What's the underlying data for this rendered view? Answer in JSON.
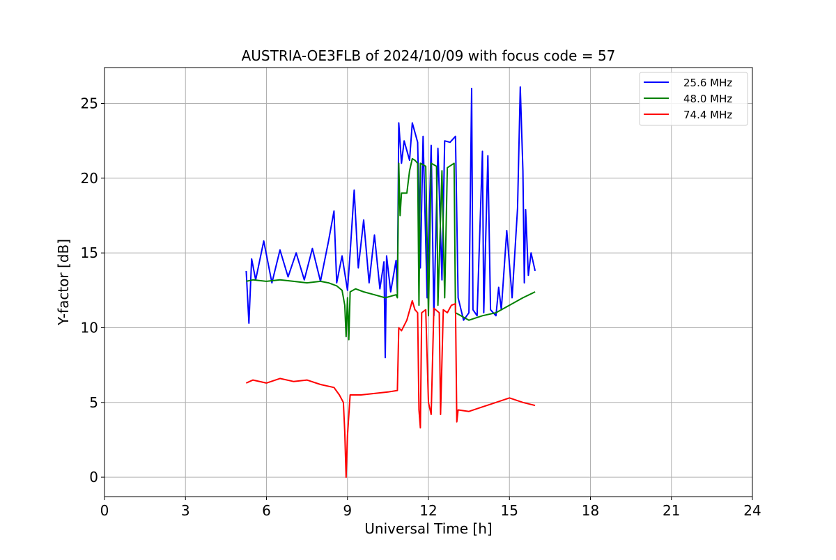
{
  "chart_data": {
    "type": "line",
    "title": "AUSTRIA-OE3FLB of 2024/10/09 with focus code = 57",
    "xlabel": "Universal Time [h]",
    "ylabel": "Y-factor [dB]",
    "xlim": [
      0,
      24
    ],
    "ylim": [
      -1.3,
      27.4
    ],
    "xticks": [
      0,
      3,
      6,
      9,
      12,
      15,
      18,
      21,
      24
    ],
    "yticks": [
      0,
      5,
      10,
      15,
      20,
      25
    ],
    "grid": true,
    "legend_position": "top-right",
    "series": [
      {
        "name": "25.6 MHz",
        "color": "#0000ff",
        "points": [
          [
            5.25,
            13.8
          ],
          [
            5.35,
            10.3
          ],
          [
            5.45,
            14.6
          ],
          [
            5.6,
            13.2
          ],
          [
            5.9,
            15.8
          ],
          [
            6.2,
            13.0
          ],
          [
            6.5,
            15.2
          ],
          [
            6.8,
            13.4
          ],
          [
            7.1,
            15.0
          ],
          [
            7.4,
            13.2
          ],
          [
            7.7,
            15.3
          ],
          [
            8.0,
            13.1
          ],
          [
            8.3,
            15.8
          ],
          [
            8.5,
            17.8
          ],
          [
            8.6,
            13.0
          ],
          [
            8.8,
            14.8
          ],
          [
            9.0,
            12.5
          ],
          [
            9.1,
            15.0
          ],
          [
            9.25,
            19.2
          ],
          [
            9.4,
            14.0
          ],
          [
            9.6,
            17.2
          ],
          [
            9.8,
            13.0
          ],
          [
            10.0,
            16.2
          ],
          [
            10.2,
            12.6
          ],
          [
            10.35,
            14.4
          ],
          [
            10.4,
            8.0
          ],
          [
            10.45,
            14.8
          ],
          [
            10.6,
            12.4
          ],
          [
            10.8,
            14.5
          ],
          [
            10.85,
            12.3
          ],
          [
            10.9,
            23.7
          ],
          [
            11.0,
            21.0
          ],
          [
            11.1,
            22.5
          ],
          [
            11.3,
            21.2
          ],
          [
            11.4,
            23.7
          ],
          [
            11.6,
            22.4
          ],
          [
            11.7,
            14.0
          ],
          [
            11.8,
            22.8
          ],
          [
            11.95,
            12.0
          ],
          [
            12.1,
            22.2
          ],
          [
            12.2,
            10.8
          ],
          [
            12.35,
            22.0
          ],
          [
            12.5,
            13.2
          ],
          [
            12.6,
            22.5
          ],
          [
            12.8,
            22.4
          ],
          [
            13.0,
            22.8
          ],
          [
            13.1,
            12.0
          ],
          [
            13.3,
            10.5
          ],
          [
            13.5,
            11.0
          ],
          [
            13.6,
            26.0
          ],
          [
            13.65,
            11.2
          ],
          [
            13.8,
            10.8
          ],
          [
            14.0,
            21.8
          ],
          [
            14.05,
            11.0
          ],
          [
            14.2,
            21.5
          ],
          [
            14.3,
            11.2
          ],
          [
            14.5,
            10.8
          ],
          [
            14.6,
            12.7
          ],
          [
            14.7,
            11.2
          ],
          [
            14.9,
            16.5
          ],
          [
            15.1,
            12.0
          ],
          [
            15.3,
            18.0
          ],
          [
            15.4,
            26.1
          ],
          [
            15.5,
            20.5
          ],
          [
            15.55,
            13.0
          ],
          [
            15.6,
            17.9
          ],
          [
            15.7,
            13.5
          ],
          [
            15.8,
            15.0
          ],
          [
            15.95,
            13.8
          ]
        ]
      },
      {
        "name": "48.0 MHz",
        "color": "#008000",
        "points": [
          [
            5.25,
            13.1
          ],
          [
            5.5,
            13.2
          ],
          [
            6.0,
            13.1
          ],
          [
            6.5,
            13.2
          ],
          [
            7.0,
            13.1
          ],
          [
            7.5,
            13.0
          ],
          [
            8.0,
            13.1
          ],
          [
            8.3,
            13.0
          ],
          [
            8.6,
            12.8
          ],
          [
            8.8,
            12.5
          ],
          [
            8.9,
            11.5
          ],
          [
            8.95,
            9.4
          ],
          [
            9.0,
            12.0
          ],
          [
            9.05,
            9.2
          ],
          [
            9.1,
            12.4
          ],
          [
            9.3,
            12.6
          ],
          [
            9.6,
            12.4
          ],
          [
            10.0,
            12.2
          ],
          [
            10.4,
            12.0
          ],
          [
            10.8,
            12.2
          ],
          [
            10.85,
            12.0
          ],
          [
            10.9,
            21.0
          ],
          [
            10.95,
            17.5
          ],
          [
            11.0,
            19.0
          ],
          [
            11.2,
            19.0
          ],
          [
            11.3,
            20.5
          ],
          [
            11.4,
            21.3
          ],
          [
            11.5,
            21.2
          ],
          [
            11.6,
            21.0
          ],
          [
            11.65,
            11.5
          ],
          [
            11.7,
            21.0
          ],
          [
            11.9,
            20.8
          ],
          [
            12.0,
            10.8
          ],
          [
            12.1,
            21.0
          ],
          [
            12.3,
            20.8
          ],
          [
            12.35,
            11.5
          ],
          [
            12.5,
            20.5
          ],
          [
            12.6,
            12.0
          ],
          [
            12.7,
            20.7
          ],
          [
            12.95,
            21.0
          ],
          [
            13.0,
            11.0
          ],
          [
            13.2,
            10.8
          ],
          [
            13.5,
            10.5
          ],
          [
            14.0,
            10.8
          ],
          [
            14.5,
            11.0
          ],
          [
            15.0,
            11.5
          ],
          [
            15.5,
            12.0
          ],
          [
            15.95,
            12.4
          ]
        ]
      },
      {
        "name": "74.4 MHz",
        "color": "#ff0000",
        "points": [
          [
            5.25,
            6.3
          ],
          [
            5.5,
            6.5
          ],
          [
            6.0,
            6.3
          ],
          [
            6.5,
            6.6
          ],
          [
            7.0,
            6.4
          ],
          [
            7.5,
            6.5
          ],
          [
            8.0,
            6.2
          ],
          [
            8.5,
            6.0
          ],
          [
            8.7,
            5.5
          ],
          [
            8.85,
            5.0
          ],
          [
            8.9,
            3.0
          ],
          [
            8.95,
            0.0
          ],
          [
            9.0,
            2.8
          ],
          [
            9.1,
            5.5
          ],
          [
            9.5,
            5.5
          ],
          [
            10.0,
            5.6
          ],
          [
            10.5,
            5.7
          ],
          [
            10.85,
            5.8
          ],
          [
            10.9,
            10.0
          ],
          [
            11.0,
            9.8
          ],
          [
            11.2,
            10.5
          ],
          [
            11.4,
            11.8
          ],
          [
            11.5,
            11.2
          ],
          [
            11.6,
            11.0
          ],
          [
            11.65,
            4.5
          ],
          [
            11.7,
            3.3
          ],
          [
            11.75,
            11.0
          ],
          [
            11.9,
            11.2
          ],
          [
            12.0,
            5.0
          ],
          [
            12.1,
            4.2
          ],
          [
            12.2,
            11.3
          ],
          [
            12.4,
            11.0
          ],
          [
            12.45,
            4.2
          ],
          [
            12.55,
            11.2
          ],
          [
            12.7,
            11.0
          ],
          [
            12.85,
            11.5
          ],
          [
            13.0,
            11.6
          ],
          [
            13.05,
            3.7
          ],
          [
            13.1,
            4.5
          ],
          [
            13.5,
            4.4
          ],
          [
            14.0,
            4.7
          ],
          [
            14.5,
            5.0
          ],
          [
            15.0,
            5.3
          ],
          [
            15.5,
            5.0
          ],
          [
            15.95,
            4.8
          ]
        ]
      }
    ]
  }
}
